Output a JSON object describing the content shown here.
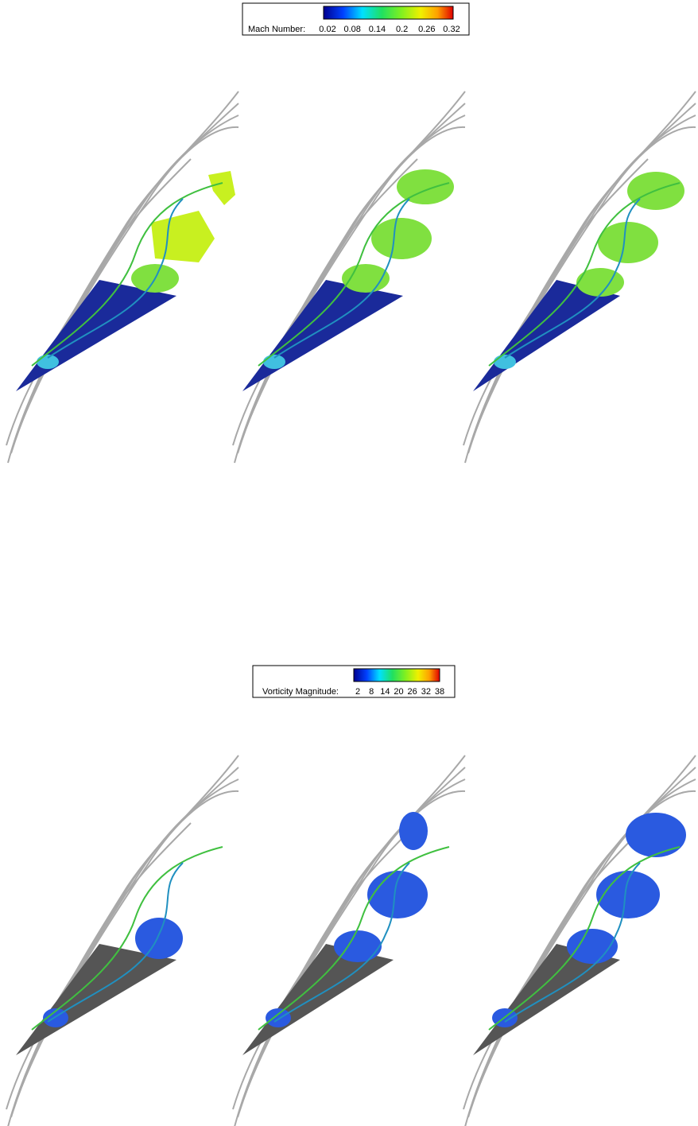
{
  "legends": [
    {
      "label": "Mach Number:",
      "ticks": [
        0.02,
        0.08,
        0.14,
        0.2,
        0.26,
        0.32
      ]
    },
    {
      "label": "Vorticity Magnitude:",
      "ticks": [
        2,
        8,
        14,
        20,
        26,
        32,
        38
      ]
    }
  ]
}
